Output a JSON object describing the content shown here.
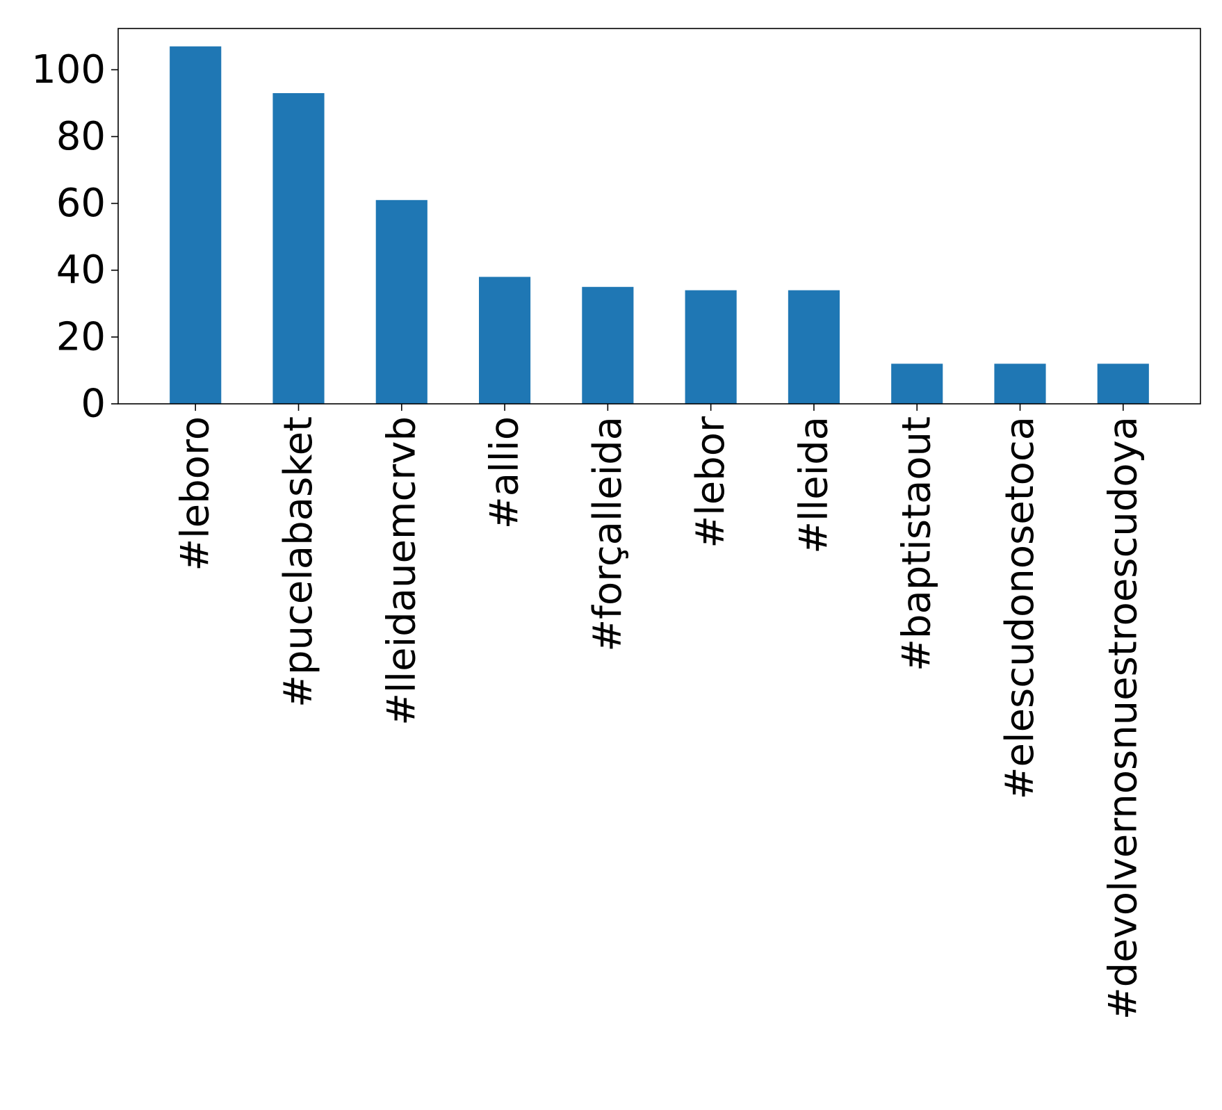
{
  "chart_data": {
    "type": "bar",
    "title": "",
    "xlabel": "",
    "ylabel": "",
    "categories": [
      "#leboro",
      "#pucelabasket",
      "#lleidauemcrvb",
      "#allio",
      "#forçalleida",
      "#lebor",
      "#lleida",
      "#baptistaout",
      "#elescudonosetoca",
      "#devolvernosnuestroescudoya"
    ],
    "values": [
      107,
      93,
      61,
      38,
      35,
      34,
      34,
      12,
      12,
      12
    ],
    "ylim": [
      0,
      112.35
    ],
    "yticks": [
      0,
      20,
      40,
      60,
      80,
      100
    ],
    "ytick_labels": [
      "0",
      "20",
      "40",
      "60",
      "80",
      "100"
    ],
    "x_tick_rotation": "vertical",
    "grid": false,
    "legend": "none",
    "bar_color": "#1f77b4"
  }
}
